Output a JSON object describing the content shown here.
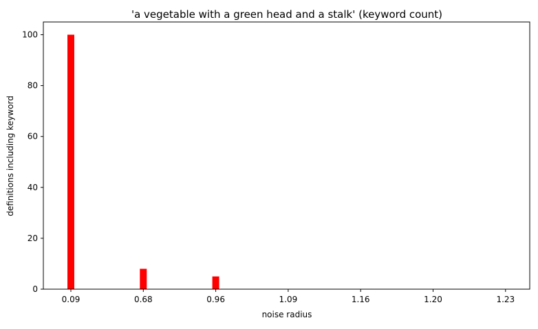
{
  "chart_data": {
    "type": "bar",
    "title": "'a vegetable with a green head and a stalk' (keyword count)",
    "xlabel": "noise radius",
    "ylabel": "definitions including keyword",
    "categories": [
      "0.09",
      "0.68",
      "0.96",
      "1.09",
      "1.16",
      "1.20",
      "1.23"
    ],
    "values": [
      100,
      8,
      5,
      0,
      0,
      0,
      0
    ],
    "ylim": [
      0,
      105
    ],
    "yticks": [
      "0",
      "20",
      "40",
      "60",
      "80",
      "100"
    ],
    "bar_color": "#ff0000",
    "grid": false,
    "legend": "none"
  }
}
